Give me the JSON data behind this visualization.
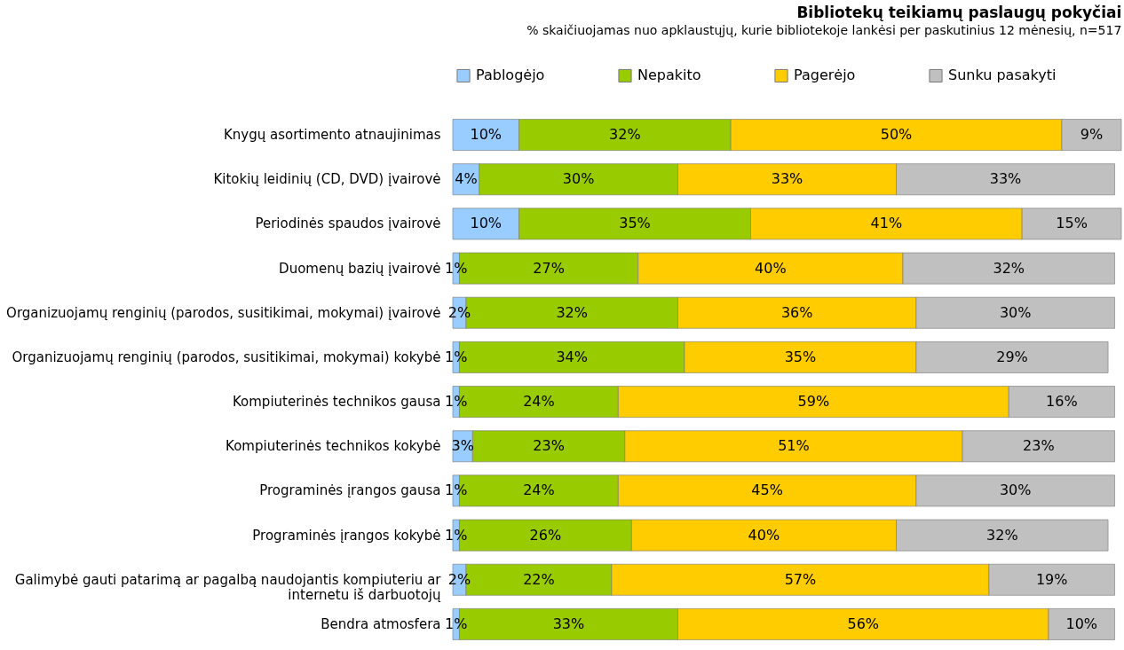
{
  "chart_data": {
    "type": "bar",
    "orientation": "horizontal",
    "stacked": true,
    "title": "Bibliotekų teikiamų paslaugų pokyčiai",
    "subtitle": "% skaičiuojamas nuo apklaustųjų, kurie bibliotekoje lankėsi per paskutinius 12 mėnesių, n=517",
    "legend": "top",
    "categories": [
      "Knygų asortimento atnaujinimas",
      "Kitokių leidinių (CD, DVD) įvairovė",
      "Periodinės spaudos įvairovė",
      "Duomenų bazių įvairovė",
      "Organizuojamų renginių (parodos, susitikimai, mokymai) įvairovė",
      "Organizuojamų renginių (parodos, susitikimai, mokymai) kokybė",
      "Kompiuterinės technikos gausa",
      "Kompiuterinės technikos kokybė",
      "Programinės įrangos gausa",
      "Programinės įrangos kokybė",
      "Galimybė gauti patarimą ar pagalbą naudojantis kompiuteriu ar\ninternetu iš darbuotojų",
      "Bendra atmosfera"
    ],
    "series": [
      {
        "name": "Pablogėjo",
        "color": "#99ccff",
        "values": [
          10,
          4,
          10,
          1,
          2,
          1,
          1,
          3,
          1,
          1,
          2,
          1
        ],
        "value_labels": [
          "10%",
          "4%",
          "10%",
          "1%",
          "2%",
          "1%",
          "1%",
          "3%",
          "1%",
          "1%",
          "2%",
          "1%"
        ]
      },
      {
        "name": "Nepakito",
        "color": "#99cc00",
        "values": [
          32,
          30,
          35,
          27,
          32,
          34,
          24,
          23,
          24,
          26,
          22,
          33
        ],
        "value_labels": [
          "32%",
          "30%",
          "35%",
          "27%",
          "32%",
          "34%",
          "24%",
          "23%",
          "24%",
          "26%",
          "22%",
          "33%"
        ]
      },
      {
        "name": "Pagerėjo",
        "color": "#ffcc00",
        "values": [
          50,
          33,
          41,
          40,
          36,
          35,
          59,
          51,
          45,
          40,
          57,
          56
        ],
        "value_labels": [
          "50%",
          "33%",
          "41%",
          "40%",
          "36%",
          "35%",
          "59%",
          "51%",
          "45%",
          "40%",
          "57%",
          "56%"
        ]
      },
      {
        "name": "Sunku pasakyti",
        "color": "#c0c0c0",
        "values": [
          9,
          33,
          15,
          32,
          30,
          29,
          16,
          23,
          30,
          32,
          19,
          10
        ],
        "value_labels": [
          "9%",
          "33%",
          "15%",
          "32%",
          "30%",
          "29%",
          "16%",
          "23%",
          "30%",
          "32%",
          "19%",
          "10%"
        ]
      }
    ]
  }
}
